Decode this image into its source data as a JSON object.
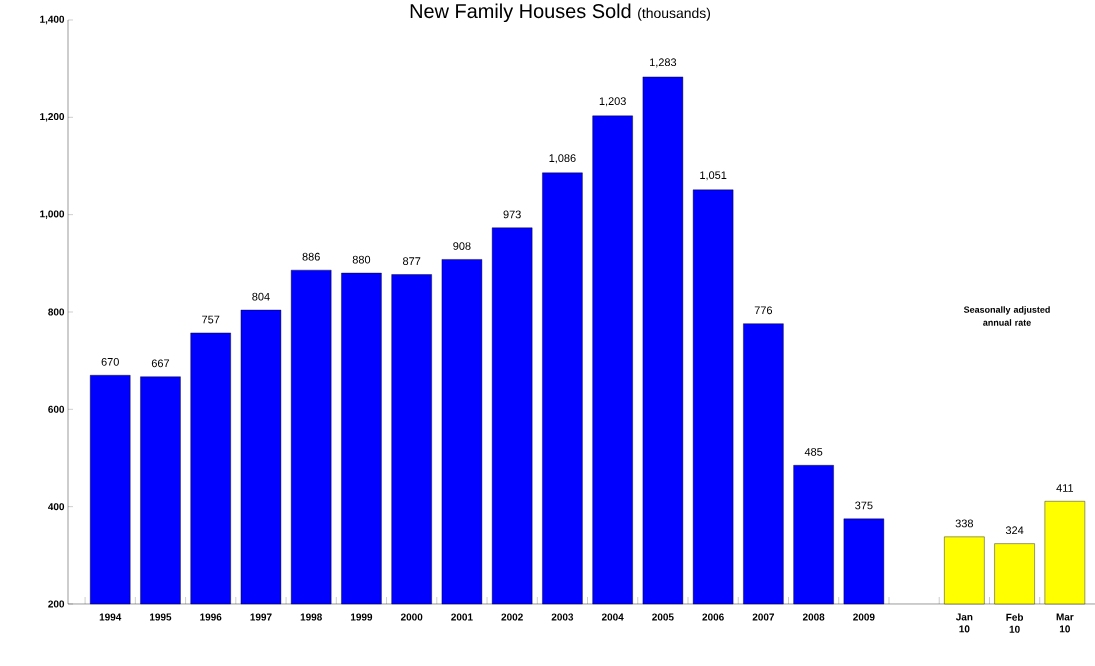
{
  "chart_data": {
    "type": "bar",
    "title": "New Family Houses Sold",
    "subtitle": "(thousands)",
    "categories": [
      "1994",
      "1995",
      "1996",
      "1997",
      "1998",
      "1999",
      "2000",
      "2001",
      "2002",
      "2003",
      "2004",
      "2005",
      "2006",
      "2007",
      "2008",
      "2009",
      null,
      "Jan 10",
      "Feb 10",
      "Mar 10"
    ],
    "values": [
      670,
      667,
      757,
      804,
      886,
      880,
      877,
      908,
      973,
      1086,
      1203,
      1283,
      1051,
      776,
      485,
      375,
      null,
      338,
      324,
      411
    ],
    "value_labels": [
      "670",
      "667",
      "757",
      "804",
      "886",
      "880",
      "877",
      "908",
      "973",
      "1,086",
      "1,203",
      "1,283",
      "1,051",
      "776",
      "485",
      "375",
      null,
      "338",
      "324",
      "411"
    ],
    "colors": [
      "#0000ff",
      "#0000ff",
      "#0000ff",
      "#0000ff",
      "#0000ff",
      "#0000ff",
      "#0000ff",
      "#0000ff",
      "#0000ff",
      "#0000ff",
      "#0000ff",
      "#0000ff",
      "#0000ff",
      "#0000ff",
      "#0000ff",
      "#0000ff",
      null,
      "#ffff00",
      "#ffff00",
      "#ffff00"
    ],
    "ylim": [
      200,
      1400
    ],
    "yticks": [
      {
        "value": 200,
        "label": "200"
      },
      {
        "value": 400,
        "label": "400"
      },
      {
        "value": 600,
        "label": "600"
      },
      {
        "value": 800,
        "label": "800"
      },
      {
        "value": 1000,
        "label": "1,000"
      },
      {
        "value": 1200,
        "label": "1,200"
      },
      {
        "value": 1400,
        "label": "1,400"
      }
    ],
    "grid": false,
    "annotations": [
      "Seasonally adjusted annual rate"
    ]
  }
}
